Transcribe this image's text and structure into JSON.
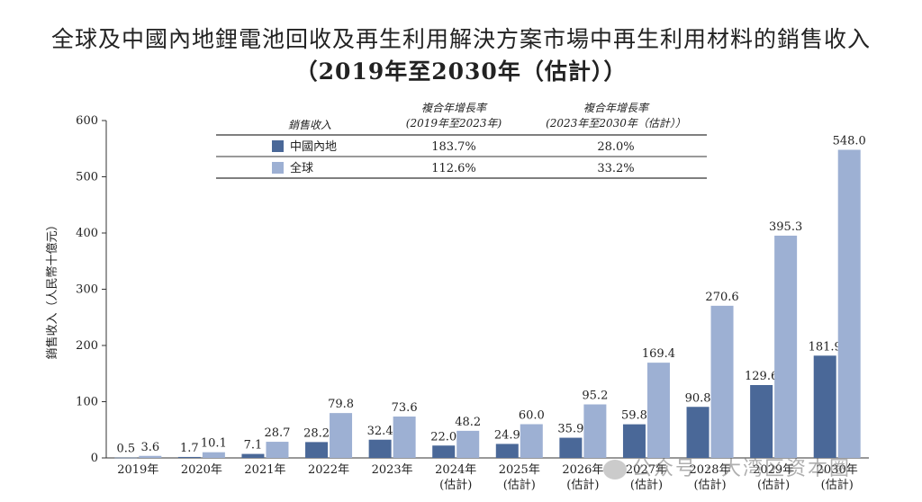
{
  "chart_data": {
    "type": "bar",
    "title_line1": "全球及中國內地鋰電池回收及再生利用解決方案市場中再生利用材料的銷售收入",
    "title_line2": "（2019年至2030年（估計））",
    "ylabel": "銷售收入（人民幣十億元）",
    "ylim": [
      0,
      600
    ],
    "yticks": [
      "0",
      "100",
      "200",
      "300",
      "400",
      "500",
      "600"
    ],
    "categories": [
      [
        "2019年"
      ],
      [
        "2020年"
      ],
      [
        "2021年"
      ],
      [
        "2022年"
      ],
      [
        "2023年"
      ],
      [
        "2024年",
        "(估計)"
      ],
      [
        "2025年",
        "(估計)"
      ],
      [
        "2026年",
        "(估計)"
      ],
      [
        "2027年",
        "(估計)"
      ],
      [
        "2028年",
        "(估計)"
      ],
      [
        "2029年",
        "(估計)"
      ],
      [
        "2030年",
        "(估計)"
      ]
    ],
    "series": [
      {
        "name": "中國內地",
        "color": "#4a6898",
        "values": [
          0.5,
          1.7,
          7.1,
          28.2,
          32.4,
          22.0,
          24.9,
          35.9,
          59.8,
          90.8,
          129.6,
          181.9
        ],
        "labels": [
          "0.5",
          "1.7",
          "7.1",
          "28.2",
          "32.4",
          "22.0",
          "24.9",
          "35.9",
          "59.8",
          "90.8",
          "129.6",
          "181.9"
        ]
      },
      {
        "name": "全球",
        "color": "#9db0d3",
        "values": [
          3.6,
          10.1,
          28.7,
          79.8,
          73.6,
          48.2,
          60.0,
          95.2,
          169.4,
          270.6,
          395.3,
          548.0
        ],
        "labels": [
          "3.6",
          "10.1",
          "28.7",
          "79.8",
          "73.6",
          "48.2",
          "60.0",
          "95.2",
          "169.4",
          "270.6",
          "395.3",
          "548.0"
        ]
      }
    ],
    "legend_table": {
      "header": [
        "銷售收入",
        "複合年增長率",
        "複合年增長率"
      ],
      "subheader": [
        "(2019年至2023年)",
        "(2023年至2030年（估計））"
      ],
      "rows": [
        {
          "name": "中國內地",
          "cagr1": "183.7%",
          "cagr2": "28.0%"
        },
        {
          "name": "全球",
          "cagr1": "112.6%",
          "cagr2": "33.2%"
        }
      ]
    }
  },
  "watermark": "公众号 · 大湾区资本圈"
}
